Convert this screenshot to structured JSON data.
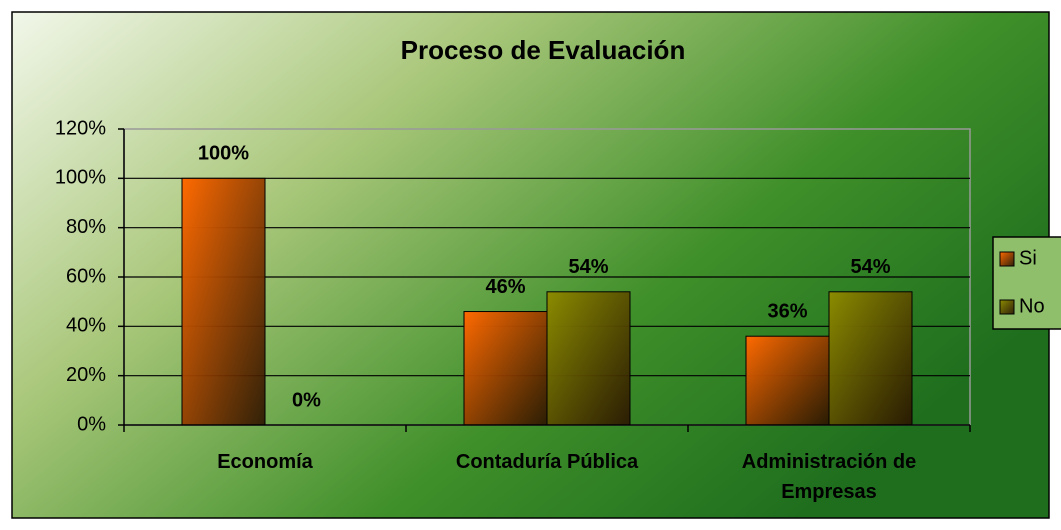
{
  "chart_data": {
    "type": "bar",
    "title": "Proceso de Evaluación",
    "categories": [
      "Economía",
      "Contaduría Pública",
      "Administración de Empresas"
    ],
    "series": [
      {
        "name": "Si",
        "color": "#ff6a00",
        "values": [
          100,
          46,
          36
        ],
        "value_labels": [
          "100%",
          "46%",
          "36%"
        ]
      },
      {
        "name": "No",
        "color": "#8c8c00",
        "values": [
          0,
          54,
          54
        ],
        "value_labels": [
          "0%",
          "54%",
          "54%"
        ]
      }
    ],
    "ylim": [
      0,
      120
    ],
    "yticks": [
      {
        "value": 0,
        "label": "0%"
      },
      {
        "value": 20,
        "label": "20%"
      },
      {
        "value": 40,
        "label": "40%"
      },
      {
        "value": 60,
        "label": "60%"
      },
      {
        "value": 80,
        "label": "80%"
      },
      {
        "value": 100,
        "label": "100%"
      },
      {
        "value": 120,
        "label": "120%"
      }
    ],
    "grid": true,
    "legend": "right"
  }
}
